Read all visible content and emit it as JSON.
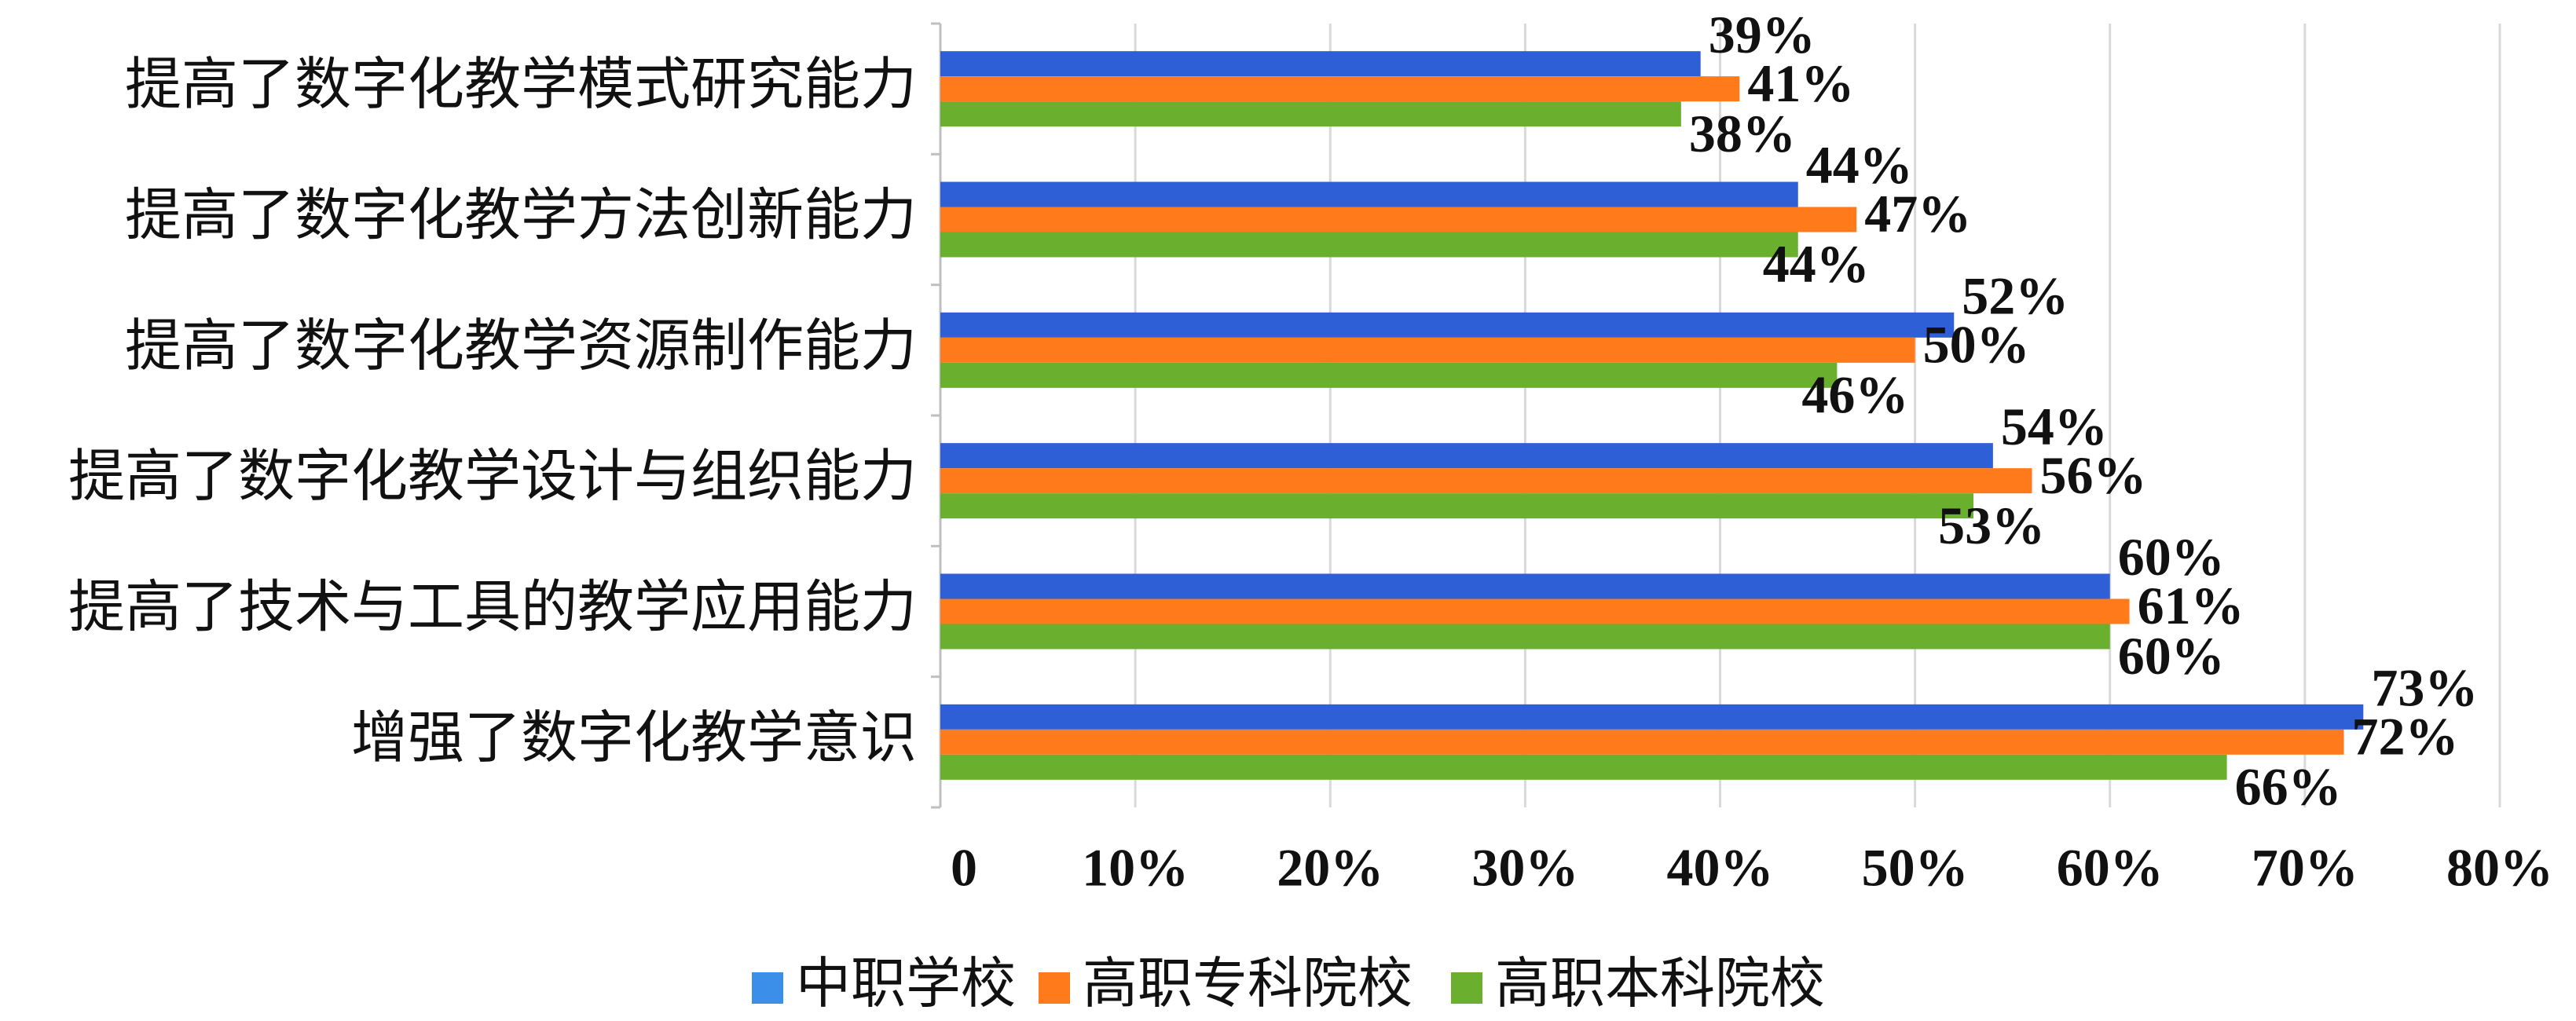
{
  "chart_data": {
    "type": "bar",
    "orientation": "horizontal",
    "categories": [
      "提高了数字化教学模式研究能力",
      "提高了数字化教学方法创新能力",
      "提高了数字化教学资源制作能力",
      "提高了数字化教学设计与组织能力",
      "提高了技术与工具的教学应用能力",
      "增强了数字化教学意识"
    ],
    "series": [
      {
        "name": "中职学校",
        "color": "#2f5fd6",
        "legend_color": "#3b8fe8",
        "values": [
          39,
          44,
          52,
          54,
          60,
          73
        ],
        "labels": [
          "39%",
          "44%",
          "52%",
          "54%",
          "60%",
          "73%"
        ]
      },
      {
        "name": "高职专科院校",
        "color": "#ff7a1a",
        "values": [
          41,
          47,
          50,
          56,
          61,
          72
        ],
        "labels": [
          "41%",
          "47%",
          "50%",
          "56%",
          "61%",
          "72%"
        ]
      },
      {
        "name": "高职本科院校",
        "color": "#6ab02e",
        "values": [
          38,
          44,
          46,
          53,
          60,
          66
        ],
        "labels": [
          "38%",
          "44%",
          "46%",
          "53%",
          "60%",
          "66%"
        ]
      }
    ],
    "xlim": [
      0,
      80
    ],
    "xticks": [
      0,
      10,
      20,
      30,
      40,
      50,
      60,
      70,
      80
    ],
    "xtick_labels": [
      "0",
      "10%",
      "20%",
      "30%",
      "40%",
      "50%",
      "60%",
      "70%",
      "80%"
    ],
    "grid": "vertical",
    "legend_position": "bottom"
  }
}
